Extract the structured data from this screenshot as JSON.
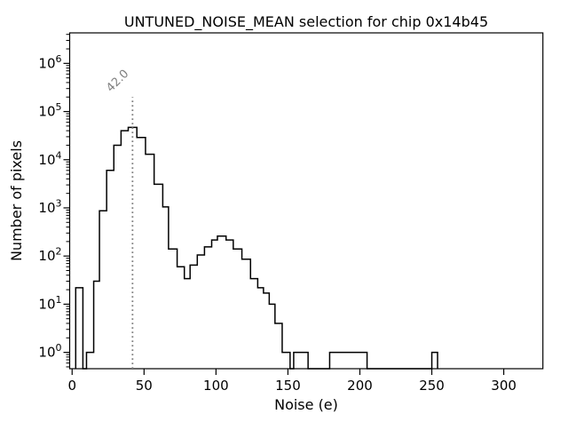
{
  "figure": {
    "background": "#ffffff"
  },
  "chart_data": {
    "type": "histogram",
    "title": "UNTUNED_NOISE_MEAN selection for chip 0x14b45",
    "xlabel": "Noise (e)",
    "ylabel": "Number of pixels",
    "x_ticks": [
      0,
      50,
      100,
      150,
      200,
      250,
      300
    ],
    "y_tick_exponents": [
      0,
      1,
      2,
      3,
      4,
      5,
      6
    ],
    "xlim": [
      -1.7,
      327.2
    ],
    "ylim": [
      0.458,
      4300000
    ],
    "y_scale": "log",
    "grid": false,
    "legend": null,
    "line_color": "#000000",
    "bins": [
      [
        2.5,
        7.5,
        22
      ],
      [
        7.5,
        10,
        0
      ],
      [
        10,
        15,
        1
      ],
      [
        15,
        19,
        30
      ],
      [
        19,
        24,
        870
      ],
      [
        24,
        29,
        6000
      ],
      [
        29,
        34,
        20000
      ],
      [
        34,
        39,
        40000
      ],
      [
        39,
        45,
        47000
      ],
      [
        45,
        51,
        29000
      ],
      [
        51,
        57,
        13000
      ],
      [
        57,
        63,
        3100
      ],
      [
        63,
        67,
        1050
      ],
      [
        67,
        73,
        140
      ],
      [
        73,
        78,
        60
      ],
      [
        78,
        82,
        34
      ],
      [
        82,
        87,
        65
      ],
      [
        87,
        92,
        105
      ],
      [
        92,
        97,
        155
      ],
      [
        97,
        101,
        215
      ],
      [
        101,
        107,
        260
      ],
      [
        107,
        112,
        215
      ],
      [
        112,
        118,
        140
      ],
      [
        118,
        124,
        86
      ],
      [
        124,
        129,
        34
      ],
      [
        129,
        133,
        22
      ],
      [
        133,
        137,
        17
      ],
      [
        137,
        141,
        10
      ],
      [
        141,
        146,
        4
      ],
      [
        146,
        151.5,
        1
      ],
      [
        151.5,
        154,
        0
      ],
      [
        154,
        164,
        1
      ],
      [
        164,
        179,
        0
      ],
      [
        179,
        205,
        1
      ],
      [
        205,
        250,
        0
      ],
      [
        250,
        254,
        1
      ]
    ],
    "vline": {
      "x": 42.0,
      "label": "42.0",
      "color": "#808080",
      "style": "dotted",
      "top_count": 200000
    }
  }
}
